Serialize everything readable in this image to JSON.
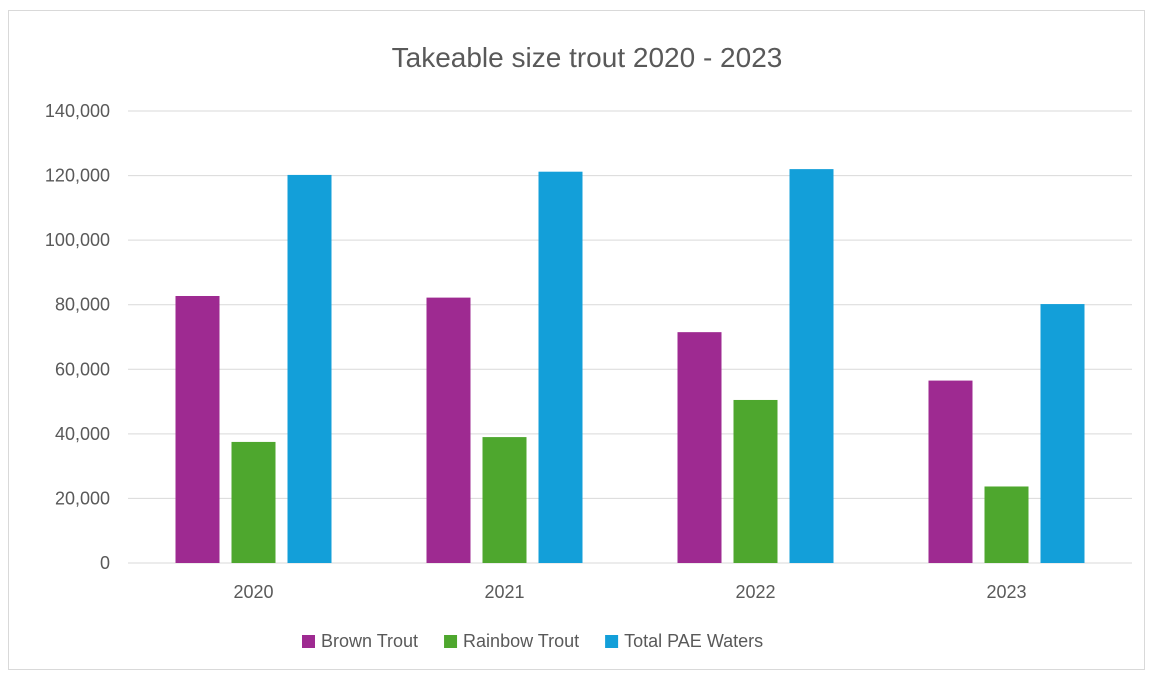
{
  "chart_data": {
    "type": "bar",
    "title": "Takeable size trout 2020 - 2023",
    "xlabel": "",
    "ylabel": "",
    "categories": [
      "2020",
      "2021",
      "2022",
      "2023"
    ],
    "series": [
      {
        "name": "Brown Trout",
        "color": "#9e2a91",
        "values": [
          82700,
          82200,
          71500,
          56500
        ]
      },
      {
        "name": "Rainbow Trout",
        "color": "#4ea72e",
        "values": [
          37500,
          39000,
          50500,
          23700
        ]
      },
      {
        "name": "Total PAE Waters",
        "color": "#139fd9",
        "values": [
          120200,
          121200,
          122000,
          80200
        ]
      }
    ],
    "ylim": [
      0,
      140000
    ],
    "yticks": [
      0,
      20000,
      40000,
      60000,
      80000,
      100000,
      120000,
      140000
    ],
    "ytick_labels": [
      "0",
      "20,000",
      "40,000",
      "60,000",
      "80,000",
      "100,000",
      "120,000",
      "140,000"
    ],
    "grid": true,
    "legend_position": "bottom"
  }
}
